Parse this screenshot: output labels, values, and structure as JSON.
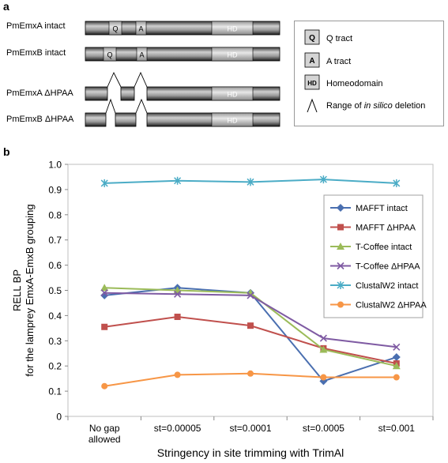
{
  "panel_a": {
    "letter": "a",
    "rows": [
      {
        "label": "PmEmxA  intact",
        "marks": [
          "Q",
          "A",
          "HD"
        ]
      },
      {
        "label": "PmEmxB  intact",
        "marks": [
          "Q",
          "A",
          "HD"
        ]
      },
      {
        "label": "PmEmxA  ΔHPAA",
        "marks": [
          "HD"
        ]
      },
      {
        "label": "PmEmxB  ΔHPAA",
        "marks": [
          "HD"
        ]
      }
    ],
    "legend": {
      "items": [
        {
          "symbol": "Q",
          "label": "Q tract"
        },
        {
          "symbol": "A",
          "label": "A tract"
        },
        {
          "symbol": "HD",
          "label": "Homeodomain"
        }
      ],
      "deletion_prefix": "Range of ",
      "deletion_italic": "in silico",
      "deletion_suffix": " deletion"
    }
  },
  "panel_b": {
    "letter": "b"
  },
  "chart_data": {
    "type": "line",
    "categories": [
      "No gap allowed",
      "st=0.00005",
      "st=0.0001",
      "st=0.0005",
      "st=0.001"
    ],
    "category_lines": [
      [
        "No gap",
        "allowed"
      ],
      [
        "st=0.00005"
      ],
      [
        "st=0.0001"
      ],
      [
        "st=0.0005"
      ],
      [
        "st=0.001"
      ]
    ],
    "xlabel": "Stringency in site trimming with TrimAl",
    "ylabel": [
      "RELL BP",
      "for the lamprey EmxA-EmxB grouping"
    ],
    "ylim": [
      0,
      1.0
    ],
    "yticks": [
      "0",
      "0.1",
      "0.2",
      "0.3",
      "0.4",
      "0.5",
      "0.6",
      "0.7",
      "0.8",
      "0.9",
      "1.0"
    ],
    "grid": false,
    "legend_position": "right",
    "series": [
      {
        "name": "MAFFT intact",
        "color": "#4a6fb0",
        "marker": "diamond",
        "values": [
          0.48,
          0.51,
          0.49,
          0.14,
          0.235
        ]
      },
      {
        "name": "MAFFT ΔHPAA",
        "color": "#c0504d",
        "marker": "square",
        "values": [
          0.355,
          0.395,
          0.36,
          0.27,
          0.21
        ]
      },
      {
        "name": "T-Coffee intact",
        "color": "#9bbb59",
        "marker": "triangle",
        "values": [
          0.51,
          0.5,
          0.49,
          0.265,
          0.2
        ]
      },
      {
        "name": "T-Coffee ΔHPAA",
        "color": "#7f5ba3",
        "marker": "x",
        "values": [
          0.49,
          0.485,
          0.48,
          0.31,
          0.275
        ]
      },
      {
        "name": "ClustalW2 intact",
        "color": "#4bacc6",
        "marker": "star",
        "values": [
          0.925,
          0.935,
          0.93,
          0.94,
          0.925
        ]
      },
      {
        "name": "ClustalW2 ΔHPAA",
        "color": "#f79646",
        "marker": "circle",
        "values": [
          0.12,
          0.165,
          0.17,
          0.155,
          0.155
        ]
      }
    ]
  }
}
